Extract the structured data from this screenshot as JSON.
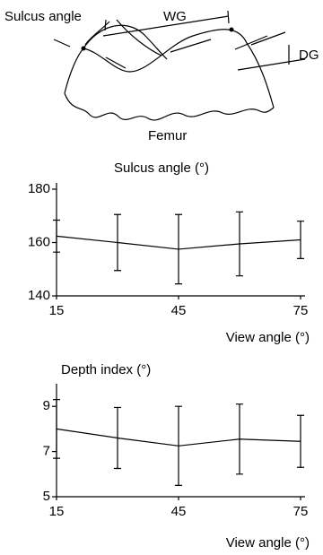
{
  "diagram": {
    "labels": {
      "sulcus": "Sulcus angle",
      "wg": "WG",
      "dg": "DG",
      "femur": "Femur"
    }
  },
  "chart_data": [
    {
      "type": "line",
      "title": "Sulcus angle (°)",
      "x_label": "View angle (°)",
      "x": [
        15,
        30,
        45,
        60,
        75
      ],
      "values": [
        162.4,
        160,
        157.5,
        159.5,
        161
      ],
      "errors": [
        6,
        10.5,
        13,
        12,
        7
      ],
      "color": "#000000",
      "xlim": [
        15,
        75
      ],
      "xticks": [
        15,
        45,
        75
      ],
      "ylim": [
        140,
        180
      ],
      "yticks": [
        140,
        160,
        180
      ]
    },
    {
      "type": "line",
      "title": "Depth index (°)",
      "x_label": "View angle (°)",
      "x": [
        15,
        30,
        45,
        60,
        75
      ],
      "values": [
        8,
        7.6,
        7.25,
        7.55,
        7.45
      ],
      "errors": [
        1.3,
        1.35,
        1.75,
        1.55,
        1.15
      ],
      "color": "#000000",
      "xlim": [
        15,
        75
      ],
      "xticks": [
        15,
        45,
        75
      ],
      "ylim": [
        5,
        10
      ],
      "yticks": [
        5,
        7,
        9
      ]
    }
  ]
}
